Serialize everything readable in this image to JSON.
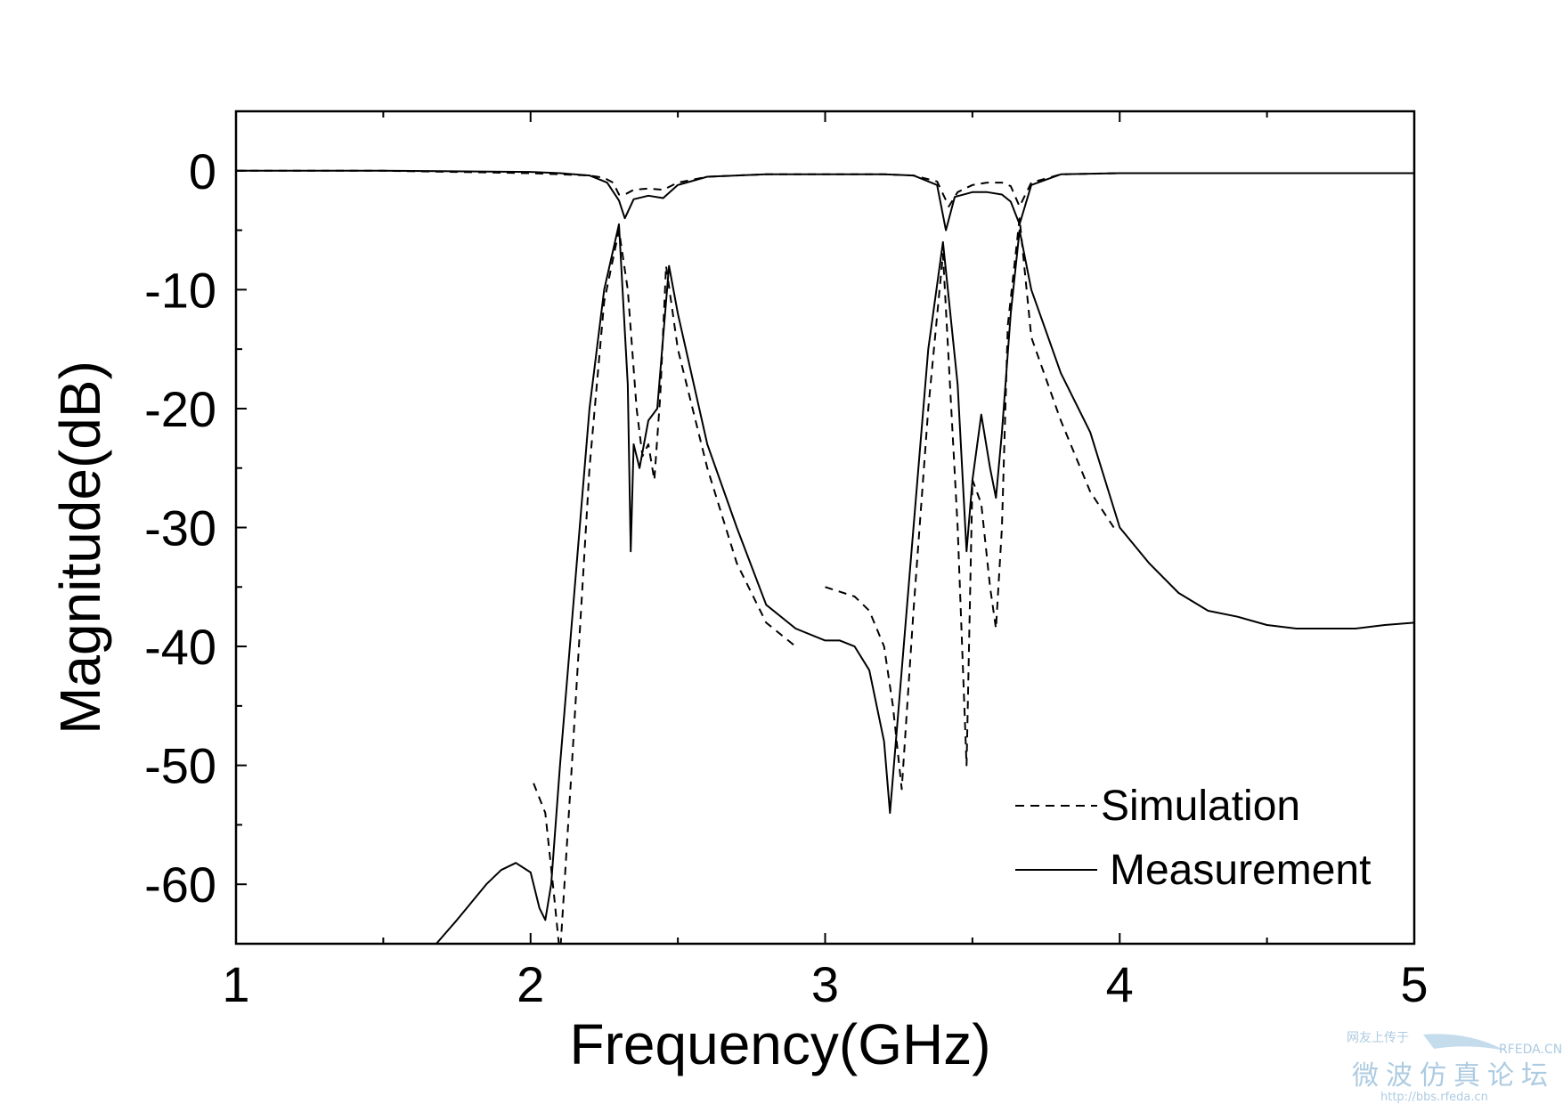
{
  "chart_data": {
    "type": "line",
    "title": "",
    "xlabel": "Frequency(GHz)",
    "ylabel": "Magnitude(dB)",
    "xlim": [
      1,
      5
    ],
    "ylim": [
      -65,
      5
    ],
    "x_ticks": [
      1,
      2,
      3,
      4,
      5
    ],
    "x_tick_labels": [
      "1",
      "2",
      "3",
      "4",
      "5"
    ],
    "y_ticks": [
      0,
      -10,
      -20,
      -30,
      -40,
      -50,
      -60
    ],
    "y_tick_labels": [
      "0",
      "-10",
      "-20",
      "-30",
      "-40",
      "-50",
      "-60"
    ],
    "grid": false,
    "legend_position": "bottom-right",
    "series": [
      {
        "name": "Simulation",
        "style": "dashed",
        "curve": "S21",
        "x": [
          1.0,
          1.5,
          2.0,
          2.1,
          2.2,
          2.25,
          2.28,
          2.3,
          2.32,
          2.35,
          2.4,
          2.45,
          2.5,
          2.6,
          2.8,
          3.0,
          3.2,
          3.3,
          3.38,
          3.42,
          3.45,
          3.5,
          3.55,
          3.6,
          3.63,
          3.66,
          3.7,
          3.8,
          4.0,
          4.5,
          5.0
        ],
        "y": [
          0,
          0,
          -0.2,
          -0.3,
          -0.4,
          -0.6,
          -1.0,
          -2.0,
          -2.0,
          -1.6,
          -1.5,
          -1.6,
          -1.0,
          -0.5,
          -0.3,
          -0.3,
          -0.3,
          -0.4,
          -0.9,
          -3.0,
          -1.8,
          -1.2,
          -1.0,
          -1.0,
          -1.3,
          -3.0,
          -1.0,
          -0.3,
          -0.2,
          -0.2,
          -0.2
        ]
      },
      {
        "name": "Simulation",
        "style": "dashed",
        "curve": "S11",
        "x": [
          2.01,
          2.05,
          2.08,
          2.1,
          2.14,
          2.2,
          2.25,
          2.3,
          2.33,
          2.36,
          2.38,
          2.4,
          2.42,
          2.44,
          2.46,
          2.5,
          2.6,
          2.7,
          2.8,
          2.9
        ],
        "y": [
          -51.5,
          -54,
          -61,
          -66,
          -50,
          -25,
          -11,
          -5,
          -10,
          -20,
          -24,
          -23,
          -26,
          -19,
          -8,
          -15,
          -25,
          -33,
          -38,
          -40
        ],
        "x2": [
          3.0,
          3.1,
          3.15,
          3.2,
          3.23,
          3.26,
          3.3,
          3.35,
          3.4,
          3.45,
          3.48,
          3.5,
          3.53,
          3.56,
          3.58,
          3.6,
          3.62,
          3.66,
          3.7,
          3.8,
          3.9,
          3.98
        ],
        "y2": [
          -35,
          -35.8,
          -37,
          -40,
          -45,
          -52,
          -37,
          -20,
          -7,
          -30,
          -50,
          -26,
          -28,
          -35,
          -38.5,
          -30,
          -13,
          -4,
          -14,
          -21,
          -27,
          -30
        ]
      },
      {
        "name": "Measurement",
        "style": "solid",
        "curve": "S21",
        "x": [
          1.0,
          1.5,
          2.0,
          2.1,
          2.2,
          2.26,
          2.3,
          2.32,
          2.35,
          2.4,
          2.45,
          2.5,
          2.6,
          2.8,
          3.0,
          3.2,
          3.3,
          3.38,
          3.41,
          3.44,
          3.5,
          3.55,
          3.6,
          3.63,
          3.66,
          3.7,
          3.8,
          4.0,
          4.5,
          5.0
        ],
        "y": [
          0,
          0,
          -0.1,
          -0.2,
          -0.4,
          -1.0,
          -2.5,
          -4.0,
          -2.4,
          -2.1,
          -2.3,
          -1.2,
          -0.5,
          -0.3,
          -0.3,
          -0.3,
          -0.4,
          -1.2,
          -5.0,
          -2.2,
          -1.8,
          -1.8,
          -2.0,
          -2.6,
          -4.5,
          -1.2,
          -0.3,
          -0.2,
          -0.2,
          -0.2
        ]
      },
      {
        "name": "Measurement",
        "style": "solid",
        "curve": "S11",
        "x": [
          1.68,
          1.75,
          1.8,
          1.85,
          1.9,
          1.95,
          2.0,
          2.03,
          2.05,
          2.07,
          2.1,
          2.15,
          2.2,
          2.25,
          2.3,
          2.33,
          2.34,
          2.35,
          2.37,
          2.4,
          2.43,
          2.47,
          2.5,
          2.6,
          2.7,
          2.8,
          2.9,
          3.0,
          3.05,
          3.1,
          3.15,
          3.2,
          3.22,
          3.25,
          3.3,
          3.35,
          3.4,
          3.45,
          3.48,
          3.5,
          3.53,
          3.56,
          3.58,
          3.6,
          3.63,
          3.66,
          3.7,
          3.8,
          3.9,
          4.0,
          4.1,
          4.2,
          4.3,
          4.4,
          4.5,
          4.6,
          4.7,
          4.8,
          4.9,
          5.0
        ],
        "y": [
          -65,
          -63,
          -61.5,
          -60,
          -58.8,
          -58.2,
          -59,
          -62,
          -63,
          -60,
          -50,
          -35,
          -20,
          -10,
          -4.5,
          -18,
          -32,
          -23,
          -25,
          -21,
          -20,
          -8,
          -12,
          -23,
          -30,
          -36.5,
          -38.5,
          -39.5,
          -39.5,
          -40,
          -42,
          -48,
          -54,
          -45,
          -30,
          -15,
          -6,
          -18,
          -32,
          -26,
          -20.5,
          -25,
          -27.5,
          -22,
          -12,
          -5,
          -10,
          -17,
          -22,
          -30,
          -33,
          -35.5,
          -37,
          -37.5,
          -38.2,
          -38.5,
          -38.5,
          -38.5,
          -38.2,
          -38
        ]
      }
    ]
  },
  "legend": {
    "simulation_label": "Simulation",
    "measurement_label": "Measurement"
  },
  "watermark": {
    "top_text": "网友上传于",
    "brand": "RFEDA.CN",
    "chinese": "微波仿真论坛",
    "url": "http://bbs.rfeda.cn"
  }
}
